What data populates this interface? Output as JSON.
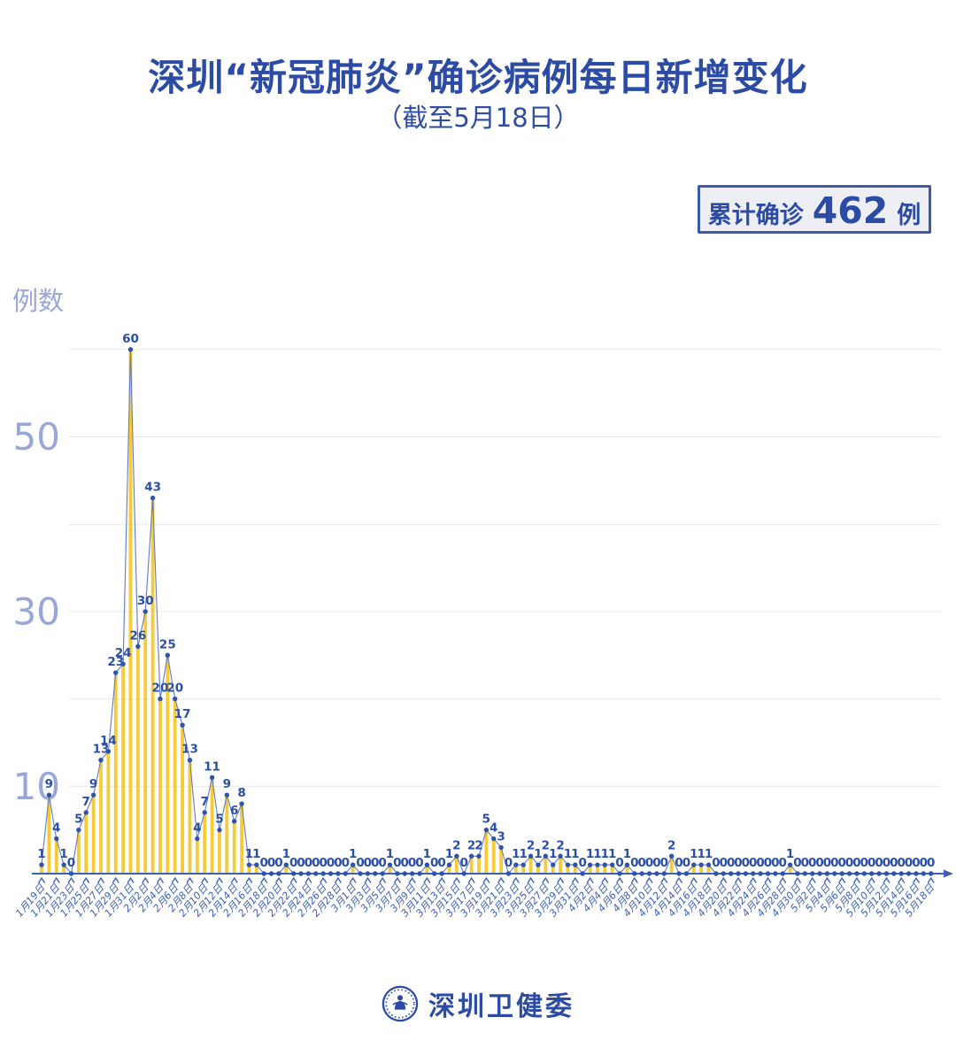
{
  "header": {
    "title": "深圳“新冠肺炎”确诊病例每日新增变化",
    "subtitle": "（截至5月18日）"
  },
  "badge": {
    "label": "累计确诊",
    "value": "462",
    "unit": "例"
  },
  "footer": {
    "logo": "shenzhen-health-commission-emblem",
    "org_name": "深圳卫健委"
  },
  "colors": {
    "accent": "#2B4BA5",
    "bar": "#F5CB37",
    "line": "#6279C3",
    "dot": "#2E53AB",
    "value_label": "#2A4FA7",
    "axis": "#3E61B6",
    "grid": "#E7E7E7",
    "y_label": "#98A6D8",
    "badge_bg": "#EDEFF4"
  },
  "chart_data": {
    "type": "bar",
    "overlay_line": true,
    "title": "深圳“新冠肺炎”确诊病例每日新增变化",
    "subtitle": "（截至5月18日）",
    "xlabel": "",
    "ylabel": "例数",
    "ylim": [
      0,
      62
    ],
    "gridlines": [
      10,
      20,
      30,
      40,
      50,
      60
    ],
    "yticks_labeled": [
      10,
      30,
      50
    ],
    "tick_every": 2,
    "legend": "none",
    "cumulative_total": 462,
    "x": [
      "1月19日",
      "1月20日",
      "1月21日",
      "1月22日",
      "1月23日",
      "1月24日",
      "1月25日",
      "1月26日",
      "1月27日",
      "1月28日",
      "1月29日",
      "1月30日",
      "1月31日",
      "2月1日",
      "2月2日",
      "2月3日",
      "2月4日",
      "2月5日",
      "2月6日",
      "2月7日",
      "2月8日",
      "2月9日",
      "2月10日",
      "2月11日",
      "2月12日",
      "2月13日",
      "2月14日",
      "2月15日",
      "2月16日",
      "2月17日",
      "2月18日",
      "2月19日",
      "2月20日",
      "2月21日",
      "2月22日",
      "2月23日",
      "2月24日",
      "2月25日",
      "2月26日",
      "2月27日",
      "2月28日",
      "2月29日",
      "3月1日",
      "3月2日",
      "3月3日",
      "3月4日",
      "3月5日",
      "3月6日",
      "3月7日",
      "3月8日",
      "3月9日",
      "3月10日",
      "3月11日",
      "3月12日",
      "3月13日",
      "3月14日",
      "3月15日",
      "3月16日",
      "3月17日",
      "3月18日",
      "3月19日",
      "3月20日",
      "3月21日",
      "3月22日",
      "3月23日",
      "3月24日",
      "3月25日",
      "3月26日",
      "3月27日",
      "3月28日",
      "3月29日",
      "3月30日",
      "3月31日",
      "4月1日",
      "4月2日",
      "4月3日",
      "4月4日",
      "4月5日",
      "4月6日",
      "4月7日",
      "4月8日",
      "4月9日",
      "4月10日",
      "4月11日",
      "4月12日",
      "4月13日",
      "4月14日",
      "4月15日",
      "4月16日",
      "4月17日",
      "4月18日",
      "4月19日",
      "4月20日",
      "4月21日",
      "4月22日",
      "4月23日",
      "4月24日",
      "4月25日",
      "4月26日",
      "4月27日",
      "4月28日",
      "4月29日",
      "4月30日",
      "5月1日",
      "5月2日",
      "5月3日",
      "5月4日",
      "5月5日",
      "5月6日",
      "5月7日",
      "5月8日",
      "5月9日",
      "5月10日",
      "5月11日",
      "5月12日",
      "5月13日",
      "5月14日",
      "5月15日",
      "5月16日",
      "5月17日",
      "5月18日"
    ],
    "values": [
      1,
      9,
      4,
      1,
      0,
      5,
      7,
      9,
      13,
      14,
      23,
      24,
      60,
      26,
      30,
      43,
      20,
      25,
      20,
      17,
      13,
      4,
      7,
      11,
      5,
      9,
      6,
      8,
      1,
      1,
      0,
      0,
      0,
      1,
      0,
      0,
      0,
      0,
      0,
      0,
      0,
      0,
      1,
      0,
      0,
      0,
      0,
      1,
      0,
      0,
      0,
      0,
      1,
      0,
      0,
      1,
      2,
      0,
      2,
      2,
      5,
      4,
      3,
      0,
      1,
      1,
      2,
      1,
      2,
      1,
      2,
      1,
      1,
      0,
      1,
      1,
      1,
      1,
      0,
      1,
      0,
      0,
      0,
      0,
      0,
      2,
      0,
      0,
      1,
      1,
      1,
      0,
      0,
      0,
      0,
      0,
      0,
      0,
      0,
      0,
      0,
      1,
      0,
      0,
      0,
      0,
      0,
      0,
      0,
      0,
      0,
      0,
      0,
      0,
      0,
      0,
      0,
      0,
      0,
      0,
      0
    ]
  }
}
